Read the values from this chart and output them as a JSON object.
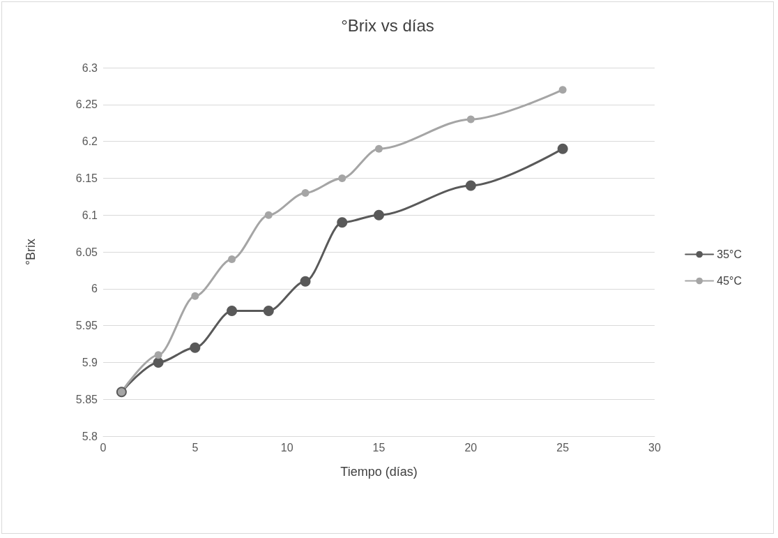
{
  "chart_data": {
    "type": "line",
    "title": "°Brix vs días",
    "xlabel": "Tiempo (días)",
    "ylabel": "°Brix",
    "x": [
      1,
      3,
      5,
      7,
      9,
      11,
      13,
      15,
      20,
      25
    ],
    "series": [
      {
        "name": "35°C",
        "color": "#595959",
        "values": [
          5.86,
          5.9,
          5.92,
          5.97,
          5.97,
          6.01,
          6.09,
          6.1,
          6.14,
          6.19
        ]
      },
      {
        "name": "45°C",
        "color": "#a5a5a5",
        "values": [
          5.86,
          5.91,
          5.99,
          6.04,
          6.1,
          6.13,
          6.15,
          6.19,
          6.23,
          6.27
        ]
      }
    ],
    "xlim": [
      0,
      30
    ],
    "xticks": [
      0,
      5,
      10,
      15,
      20,
      25,
      30
    ],
    "ylim": [
      5.8,
      6.3
    ],
    "yticks": [
      5.8,
      5.85,
      5.9,
      5.95,
      6,
      6.05,
      6.1,
      6.15,
      6.2,
      6.25,
      6.3
    ],
    "grid": "y",
    "legend": "right",
    "marker": "circle",
    "line_style": "solid"
  }
}
